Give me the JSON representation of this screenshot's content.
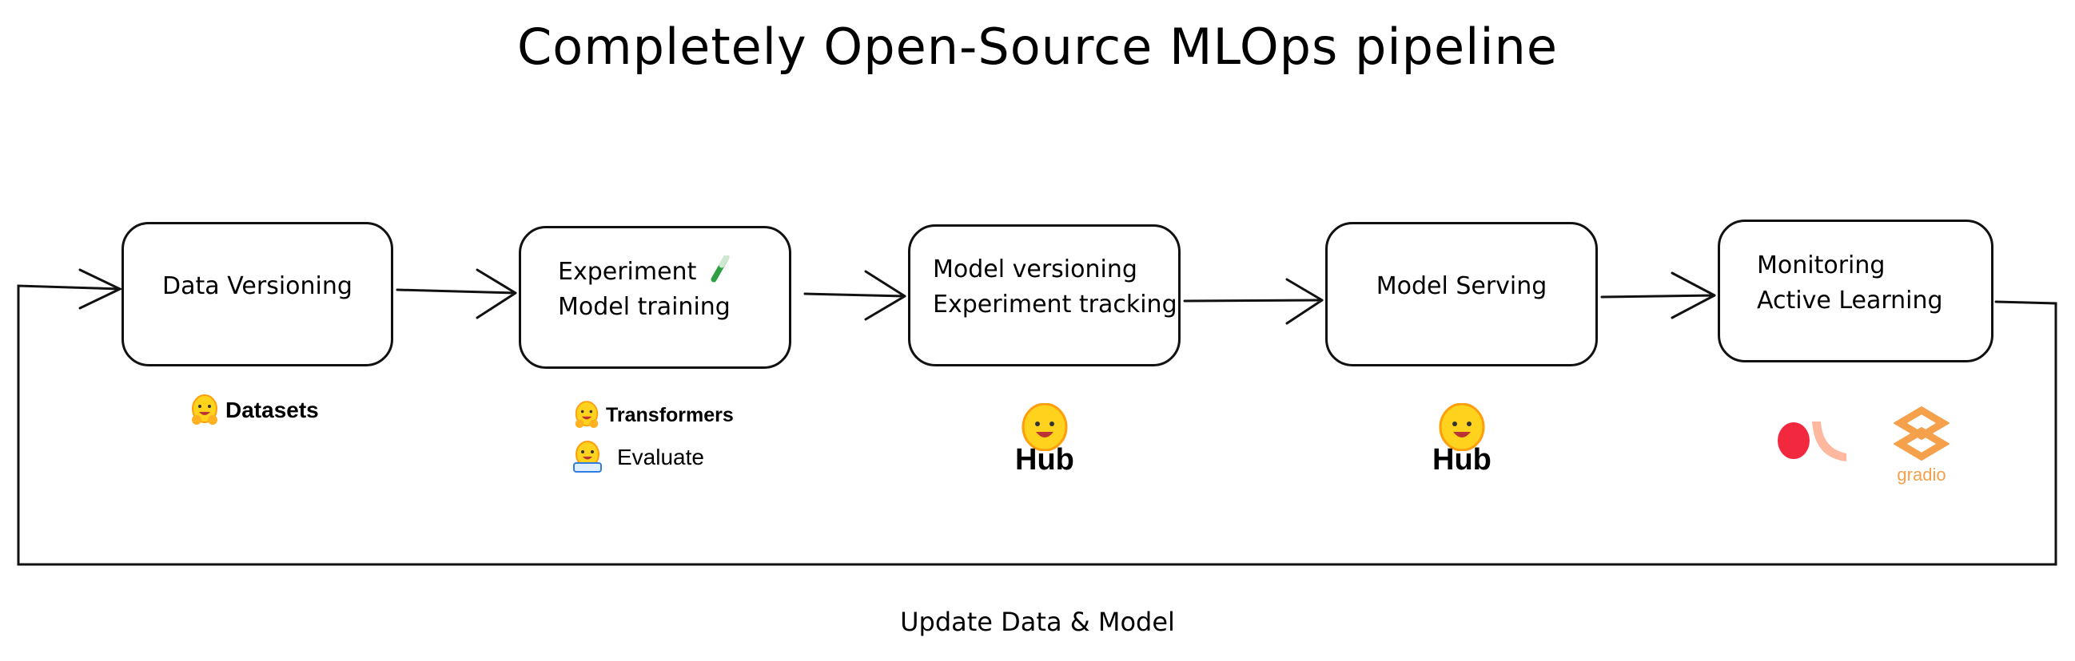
{
  "title": "Completely Open-Source MLOps pipeline",
  "stages": [
    {
      "lines": [
        "Data Versioning"
      ]
    },
    {
      "lines": [
        "Experiment",
        "Model training"
      ],
      "icon": "test-tube-icon"
    },
    {
      "lines": [
        "Model versioning",
        "Experiment tracking"
      ]
    },
    {
      "lines": [
        "Model Serving"
      ]
    },
    {
      "lines": [
        "Monitoring",
        "Active Learning"
      ]
    }
  ],
  "tools": {
    "datasets": "Datasets",
    "transformers": "Transformers",
    "evaluate": "Evaluate",
    "hub_1": "Hub",
    "hub_2": "Hub",
    "gradio": "gradio"
  },
  "loop_label": "Update Data & Model",
  "colors": {
    "hf_yellow": "#FFD21E",
    "hf_orange": "#FF9D0B",
    "argilla_red": "#F2283E",
    "argilla_peach": "#FFB8A0",
    "gradio_orange": "#F5A04A",
    "test_tube_green": "#2EA043"
  }
}
